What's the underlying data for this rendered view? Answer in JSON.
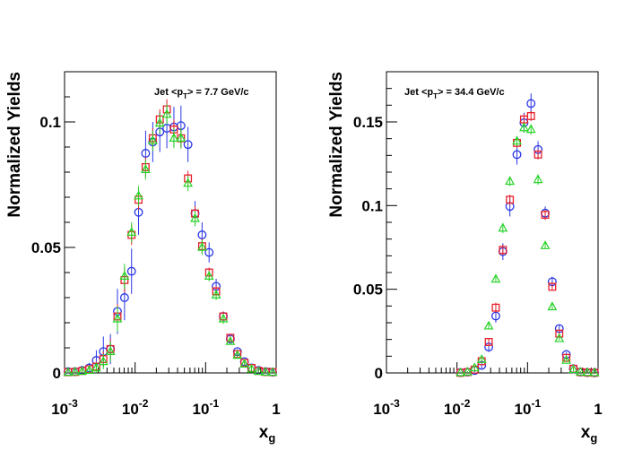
{
  "colors": {
    "red": "#e8202a",
    "blue": "#2a36e6",
    "green": "#27d327"
  },
  "chart_data": [
    {
      "type": "scatter",
      "xscale": "log",
      "xlim": [
        0.001,
        1
      ],
      "ylim": [
        0,
        0.12
      ],
      "grid": false,
      "xlabel": {
        "main": "x",
        "sub": "g"
      },
      "ylabel": "Normalized Yields",
      "xticks": [
        {
          "base": "10",
          "exp": "-3"
        },
        {
          "base": "10",
          "exp": "-2"
        },
        {
          "base": "10",
          "exp": "-1"
        },
        {
          "base": "1",
          "exp": ""
        }
      ],
      "yticks": [
        {
          "value": 0,
          "label": "0"
        },
        {
          "value": 0.05,
          "label": "0.05"
        },
        {
          "value": 0.1,
          "label": "0.1"
        }
      ],
      "annotation": {
        "pre": "Jet <p",
        "sub": "T",
        "post": "> = 7.7 GeV/c"
      },
      "series": [
        {
          "marker": "circle",
          "color": "#2a36e6",
          "x": [
            0.00112,
            0.00141,
            0.00178,
            0.00224,
            0.00282,
            0.00355,
            0.00447,
            0.00562,
            0.00708,
            0.00891,
            0.0112,
            0.0141,
            0.0178,
            0.0224,
            0.0282,
            0.0355,
            0.0447,
            0.0562,
            0.0708,
            0.0891,
            0.112,
            0.141,
            0.178,
            0.224,
            0.282,
            0.355,
            0.447,
            0.562,
            0.708,
            0.891
          ],
          "y": [
            0.0005,
            0.0005,
            0.001,
            0.002,
            0.005,
            0.0085,
            0.0095,
            0.0245,
            0.03,
            0.0405,
            0.064,
            0.0875,
            0.092,
            0.096,
            0.0975,
            0.098,
            0.0985,
            0.091,
            0.0635,
            0.055,
            0.048,
            0.0345,
            0.0225,
            0.0135,
            0.0085,
            0.0045,
            0.002,
            0.001,
            0.0005,
            0.0003
          ],
          "err": [
            0.001,
            0.001,
            0.0015,
            0.002,
            0.004,
            0.006,
            0.006,
            0.009,
            0.009,
            0.009,
            0.009,
            0.009,
            0.008,
            0.008,
            0.008,
            0.008,
            0.008,
            0.007,
            0.005,
            0.005,
            0.004,
            0.003,
            0.002,
            0.0015,
            0.001,
            0.001,
            0.001,
            0.001,
            0.001,
            0.001
          ]
        },
        {
          "marker": "square",
          "color": "#e8202a",
          "x": [
            0.00112,
            0.00141,
            0.00178,
            0.00224,
            0.00282,
            0.00355,
            0.00447,
            0.00562,
            0.00708,
            0.00891,
            0.0112,
            0.0141,
            0.0178,
            0.0224,
            0.0282,
            0.0355,
            0.0447,
            0.0562,
            0.0708,
            0.0891,
            0.112,
            0.141,
            0.178,
            0.224,
            0.282,
            0.355,
            0.447,
            0.562,
            0.708,
            0.891
          ],
          "y": [
            0.0003,
            0.0004,
            0.0008,
            0.0015,
            0.0025,
            0.0055,
            0.0095,
            0.0225,
            0.037,
            0.055,
            0.069,
            0.082,
            0.0935,
            0.101,
            0.105,
            0.097,
            0.0935,
            0.0775,
            0.0635,
            0.0505,
            0.04,
            0.0325,
            0.0225,
            0.014,
            0.0075,
            0.004,
            0.002,
            0.0008,
            0.0004,
            0.0003
          ],
          "err": [
            0.0005,
            0.0005,
            0.001,
            0.001,
            0.002,
            0.003,
            0.004,
            0.005,
            0.005,
            0.004,
            0.004,
            0.004,
            0.004,
            0.004,
            0.004,
            0.004,
            0.004,
            0.003,
            0.003,
            0.003,
            0.002,
            0.002,
            0.002,
            0.001,
            0.001,
            0.001,
            0.001,
            0.0005,
            0.0005,
            0.0005
          ]
        },
        {
          "marker": "triangle",
          "color": "#27d327",
          "x": [
            0.00112,
            0.00141,
            0.00178,
            0.00224,
            0.00282,
            0.00355,
            0.00447,
            0.00562,
            0.00708,
            0.00891,
            0.0112,
            0.0141,
            0.0178,
            0.0224,
            0.0282,
            0.0355,
            0.0447,
            0.0562,
            0.0708,
            0.0891,
            0.112,
            0.141,
            0.178,
            0.224,
            0.282,
            0.355,
            0.447,
            0.562,
            0.708,
            0.891
          ],
          "y": [
            0.0002,
            0.0004,
            0.0006,
            0.001,
            0.002,
            0.0045,
            0.0085,
            0.0215,
            0.0385,
            0.056,
            0.0705,
            0.081,
            0.0925,
            0.0995,
            0.103,
            0.0935,
            0.0935,
            0.0755,
            0.0615,
            0.05,
            0.0385,
            0.031,
            0.0215,
            0.0125,
            0.007,
            0.0035,
            0.0015,
            0.0006,
            0.0003,
            0.0002
          ],
          "err": [
            0.0005,
            0.0005,
            0.001,
            0.001,
            0.002,
            0.003,
            0.004,
            0.005,
            0.005,
            0.004,
            0.004,
            0.004,
            0.004,
            0.004,
            0.004,
            0.004,
            0.004,
            0.003,
            0.003,
            0.003,
            0.002,
            0.002,
            0.002,
            0.001,
            0.001,
            0.001,
            0.001,
            0.0005,
            0.0005,
            0.0005
          ]
        }
      ]
    },
    {
      "type": "scatter",
      "xscale": "log",
      "xlim": [
        0.001,
        1
      ],
      "ylim": [
        0,
        0.18
      ],
      "grid": false,
      "xlabel": {
        "main": "x",
        "sub": "g"
      },
      "ylabel": "Normalized Yields",
      "xticks": [
        {
          "base": "10",
          "exp": "-3"
        },
        {
          "base": "10",
          "exp": "-2"
        },
        {
          "base": "10",
          "exp": "-1"
        },
        {
          "base": "1",
          "exp": ""
        }
      ],
      "yticks": [
        {
          "value": 0,
          "label": "0"
        },
        {
          "value": 0.05,
          "label": "0.05"
        },
        {
          "value": 0.1,
          "label": "0.1"
        },
        {
          "value": 0.15,
          "label": "0.15"
        }
      ],
      "annotation": {
        "pre": "Jet <p",
        "sub": "T",
        "post": "> = 34.4 GeV/c"
      },
      "series": [
        {
          "marker": "circle",
          "color": "#2a36e6",
          "x": [
            0.0112,
            0.0141,
            0.0178,
            0.0224,
            0.0282,
            0.0355,
            0.0447,
            0.0562,
            0.0708,
            0.0891,
            0.112,
            0.141,
            0.178,
            0.224,
            0.282,
            0.355,
            0.447,
            0.562,
            0.708,
            0.891
          ],
          "y": [
            0.0002,
            0.0005,
            0.0015,
            0.0045,
            0.0155,
            0.034,
            0.0725,
            0.0995,
            0.1305,
            0.1495,
            0.161,
            0.1335,
            0.0955,
            0.0545,
            0.0265,
            0.011,
            0.0025,
            0.0005,
            0.0002,
            0.0001
          ],
          "err": [
            0.0005,
            0.0005,
            0.001,
            0.002,
            0.003,
            0.004,
            0.005,
            0.006,
            0.006,
            0.006,
            0.006,
            0.005,
            0.004,
            0.003,
            0.002,
            0.0015,
            0.001,
            0.0005,
            0.0005,
            0.0005
          ]
        },
        {
          "marker": "square",
          "color": "#e8202a",
          "x": [
            0.0112,
            0.0141,
            0.0178,
            0.0224,
            0.0282,
            0.0355,
            0.0447,
            0.0562,
            0.0708,
            0.0891,
            0.112,
            0.141,
            0.178,
            0.224,
            0.282,
            0.355,
            0.447,
            0.562,
            0.708,
            0.891
          ],
          "y": [
            0.0001,
            0.0005,
            0.002,
            0.007,
            0.0185,
            0.039,
            0.0735,
            0.1035,
            0.1375,
            0.1515,
            0.1535,
            0.1305,
            0.0945,
            0.0515,
            0.0235,
            0.009,
            0.0025,
            0.0005,
            0.0002,
            0.0001
          ],
          "err": [
            0.0005,
            0.0005,
            0.001,
            0.001,
            0.002,
            0.003,
            0.003,
            0.003,
            0.003,
            0.003,
            0.003,
            0.003,
            0.003,
            0.002,
            0.002,
            0.001,
            0.001,
            0.0005,
            0.0005,
            0.0005
          ]
        },
        {
          "marker": "triangle",
          "color": "#27d327",
          "x": [
            0.0112,
            0.0141,
            0.0178,
            0.0224,
            0.0282,
            0.0355,
            0.0447,
            0.0562,
            0.0708,
            0.0891,
            0.112,
            0.141,
            0.178,
            0.224,
            0.282,
            0.355,
            0.447,
            0.562,
            0.708,
            0.891
          ],
          "y": [
            0.0001,
            0.0005,
            0.003,
            0.008,
            0.028,
            0.056,
            0.0865,
            0.1145,
            0.1385,
            0.1465,
            0.1455,
            0.1155,
            0.076,
            0.0395,
            0.0205,
            0.0075,
            0.002,
            0.0005,
            0.0002,
            0.0001
          ],
          "err": [
            0.0005,
            0.0005,
            0.001,
            0.001,
            0.002,
            0.002,
            0.003,
            0.003,
            0.003,
            0.003,
            0.003,
            0.003,
            0.002,
            0.002,
            0.001,
            0.001,
            0.001,
            0.0005,
            0.0005,
            0.0005
          ]
        }
      ]
    }
  ]
}
